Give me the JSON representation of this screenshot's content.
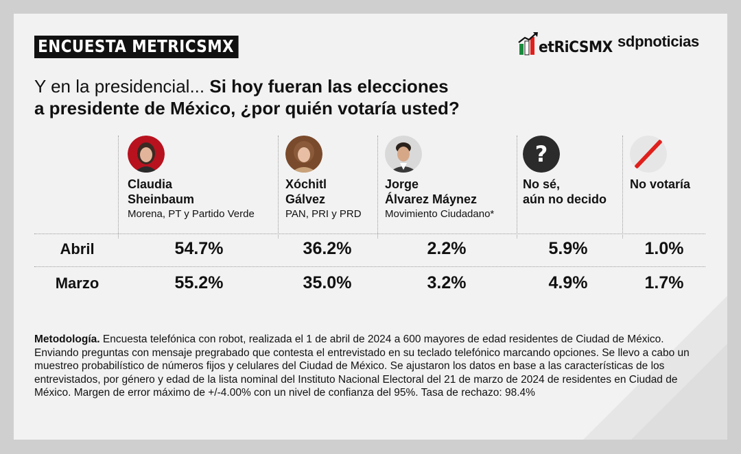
{
  "header": {
    "tag": "ENCUESTA METRICSMX",
    "logo_metrics": "etRiCSMX",
    "logo_sdp": "sdpnoticias"
  },
  "question": {
    "intro": "Y en la presidencial...",
    "bold_line1": "Si hoy fueran las elecciones",
    "bold_line2": "a presidente de México, ¿por quién votaría usted?"
  },
  "colors": {
    "accent_red": "#e0201c",
    "logo_green": "#1a8a3c",
    "dark": "#111111",
    "question_circle": "#2b2b2b"
  },
  "chart_data": {
    "type": "table",
    "columns": [
      {
        "name_line1": "Claudia",
        "name_line2": "Sheinbaum",
        "party": "Morena, PT y Partido Verde",
        "icon": "claudia-sheinbaum-avatar"
      },
      {
        "name_line1": "Xóchitl",
        "name_line2": "Gálvez",
        "party": "PAN, PRI y PRD",
        "icon": "xochitl-galvez-avatar"
      },
      {
        "name_line1": "Jorge",
        "name_line2": "Álvarez Máynez",
        "party": "Movimiento Ciudadano*",
        "icon": "jorge-alvarez-maynez-avatar"
      },
      {
        "name_line1": "No sé,",
        "name_line2": "aún no decido",
        "party": "",
        "icon": "question-mark-icon"
      },
      {
        "name_line1": "No votaría",
        "name_line2": "",
        "party": "",
        "icon": "slash-icon"
      }
    ],
    "series": [
      {
        "name": "Abril",
        "values": [
          54.7,
          36.2,
          2.2,
          5.9,
          1.0
        ],
        "labels": [
          "54.7%",
          "36.2%",
          "2.2%",
          "5.9%",
          "1.0%"
        ]
      },
      {
        "name": "Marzo",
        "values": [
          55.2,
          35.0,
          3.2,
          4.9,
          1.7
        ],
        "labels": [
          "55.2%",
          "35.0%",
          "3.2%",
          "4.9%",
          "1.7%"
        ]
      }
    ]
  },
  "methodology": {
    "label": "Metodología.",
    "text": "Encuesta telefónica con robot, realizada el 1 de abril de 2024 a 600 mayores de edad residentes de Ciudad de México. Enviando preguntas con mensaje pregrabado que contesta el entrevistado en su teclado telefónico marcando opciones. Se llevo a cabo un muestreo probabilístico de números fijos y celulares del Ciudad de México. Se ajustaron los datos en base a las características de los entrevistados, por género y edad de la lista nominal del Instituto Nacional Electoral del 21 de marzo de 2024 de residentes en Ciudad de México. Margen de error máximo de +/-4.00% con un nivel de confianza del 95%. Tasa de rechazo: 98.4%"
  }
}
